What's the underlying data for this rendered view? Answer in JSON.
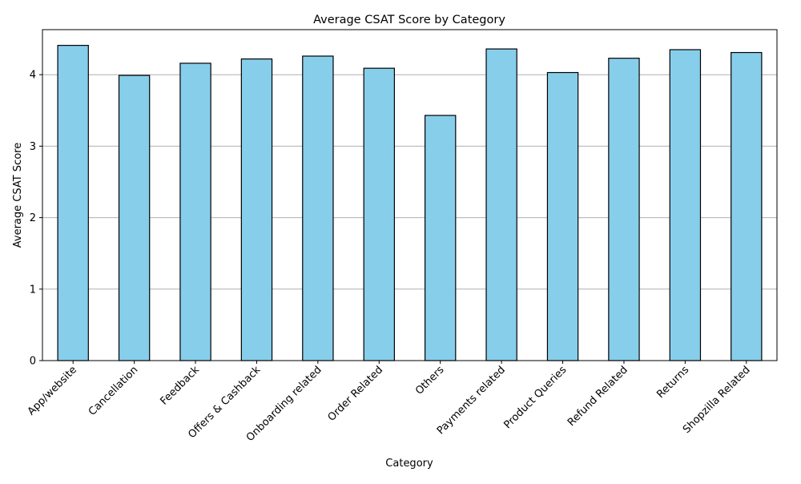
{
  "chart_data": {
    "type": "bar",
    "title": "Average CSAT Score by Category",
    "xlabel": "Category",
    "ylabel": "Average CSAT Score",
    "categories": [
      "App/website",
      "Cancellation",
      "Feedback",
      "Offers & Cashback",
      "Onboarding related",
      "Order Related",
      "Others",
      "Payments related",
      "Product Queries",
      "Refund Related",
      "Returns",
      "Shopzilla Related"
    ],
    "values": [
      4.41,
      3.99,
      4.16,
      4.22,
      4.26,
      4.09,
      3.43,
      4.36,
      4.03,
      4.23,
      4.35,
      4.31
    ],
    "ylim": [
      0,
      4.63
    ],
    "yticks": [
      0,
      1,
      2,
      3,
      4
    ],
    "grid": "horizontal",
    "bar_color": "#87CEEB",
    "bar_edge_color": "#000000",
    "grid_color": "#b0b0b0"
  }
}
